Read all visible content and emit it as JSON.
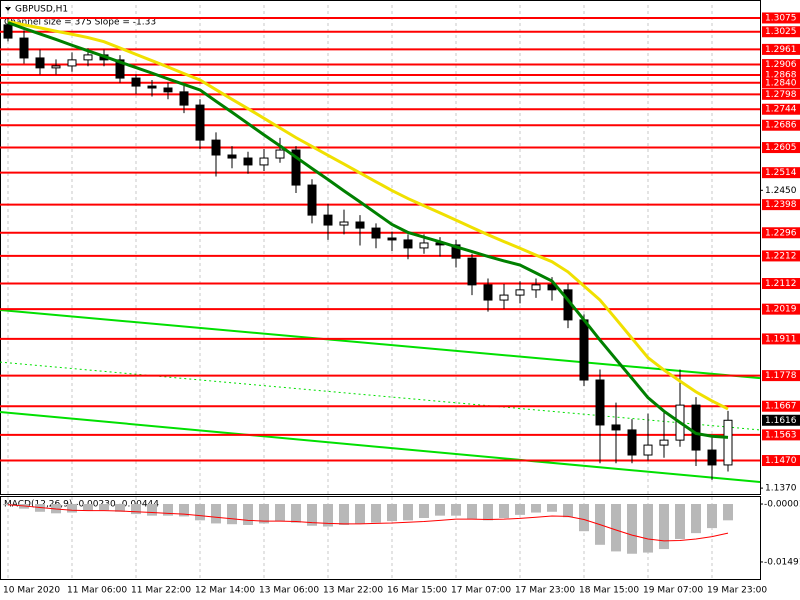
{
  "chart_data": {
    "type": "candlestick",
    "title": "GBPUSD,H1",
    "subtitle": "Channel size = 375 Slope = -1.33",
    "categories": [
      "10 Mar 2020",
      null,
      null,
      null,
      "11 Mar 06:00",
      null,
      null,
      null,
      "11 Mar 22:00",
      null,
      null,
      null,
      "12 Mar 14:00",
      null,
      null,
      null,
      "13 Mar 06:00",
      null,
      null,
      null,
      "13 Mar 22:00",
      null,
      null,
      null,
      "16 Mar 15:00",
      null,
      null,
      null,
      "17 Mar 07:00",
      null,
      null,
      null,
      "17 Mar 23:00",
      null,
      null,
      null,
      "18 Mar 15:00",
      null,
      null,
      null,
      "19 Mar 07:00",
      null,
      null,
      null,
      "19 Mar 23:00",
      null
    ],
    "open": [
      1.305,
      1.3002,
      1.293,
      1.2894,
      1.2901,
      1.2923,
      1.2941,
      1.2923,
      1.2857,
      1.2828,
      1.2821,
      1.2807,
      1.2759,
      1.2632,
      1.2578,
      1.2567,
      1.2542,
      1.2567,
      1.2596,
      1.2469,
      1.236,
      1.2324,
      1.2335,
      1.2313,
      1.2277,
      1.227,
      1.2241,
      1.2259,
      1.2252,
      1.2204,
      1.2107,
      1.2052,
      1.207,
      1.2089,
      1.2107,
      1.2089,
      1.198,
      1.1762,
      1.1599,
      1.1581,
      1.149,
      1.1526,
      1.1544,
      1.1671,
      1.1508,
      1.1454
    ],
    "high": [
      1.3075,
      1.303,
      1.296,
      1.2925,
      1.295,
      1.2965,
      1.296,
      1.294,
      1.287,
      1.285,
      1.284,
      1.283,
      1.278,
      1.266,
      1.261,
      1.259,
      1.26,
      1.264,
      1.261,
      1.249,
      1.24,
      1.238,
      1.236,
      1.233,
      1.23,
      1.229,
      1.229,
      1.228,
      1.227,
      1.222,
      1.213,
      1.211,
      1.212,
      1.213,
      1.2135,
      1.211,
      1.2,
      1.18,
      1.168,
      1.162,
      1.164,
      1.165,
      1.18,
      1.17,
      1.156,
      1.165
    ],
    "low": [
      1.299,
      1.291,
      1.287,
      1.287,
      1.288,
      1.29,
      1.29,
      1.284,
      1.28,
      1.279,
      1.278,
      1.273,
      1.26,
      1.25,
      1.253,
      1.251,
      1.252,
      1.255,
      1.244,
      1.233,
      1.227,
      1.229,
      1.225,
      1.224,
      1.223,
      1.22,
      1.222,
      1.221,
      1.217,
      1.207,
      1.201,
      1.202,
      1.204,
      1.206,
      1.205,
      1.195,
      1.174,
      1.146,
      1.146,
      1.146,
      1.147,
      1.148,
      1.152,
      1.145,
      1.14,
      1.143
    ],
    "close": [
      1.3002,
      1.293,
      1.2894,
      1.2901,
      1.2923,
      1.2941,
      1.2923,
      1.2857,
      1.2828,
      1.2821,
      1.2807,
      1.2759,
      1.2632,
      1.2578,
      1.2567,
      1.2542,
      1.2567,
      1.2596,
      1.2469,
      1.236,
      1.2324,
      1.2335,
      1.2313,
      1.2277,
      1.227,
      1.2241,
      1.2259,
      1.2252,
      1.2204,
      1.2107,
      1.2052,
      1.207,
      1.2089,
      1.2107,
      1.2089,
      1.198,
      1.1762,
      1.1599,
      1.1581,
      1.149,
      1.1526,
      1.1544,
      1.1671,
      1.1508,
      1.1454,
      1.1616
    ],
    "moving_averages": [
      {
        "color": "#f0e000",
        "values": [
          1.3062,
          1.305,
          1.3039,
          1.3027,
          1.3016,
          1.3004,
          1.2989,
          1.2966,
          1.2943,
          1.292,
          1.2897,
          1.2873,
          1.285,
          1.2815,
          1.278,
          1.2746,
          1.2711,
          1.2676,
          1.2641,
          1.2609,
          1.2577,
          1.2545,
          1.2513,
          1.2481,
          1.2449,
          1.242,
          1.2394,
          1.2368,
          1.2342,
          1.2315,
          1.2289,
          1.2264,
          1.224,
          1.2215,
          1.2191,
          1.2154,
          1.2103,
          1.2052,
          1.1983,
          1.1913,
          1.1843,
          1.1798,
          1.1758,
          1.1719,
          1.1686,
          1.1657
        ]
      },
      {
        "color": "#008000",
        "values": [
          1.3058,
          1.3037,
          1.3017,
          1.2997,
          1.2976,
          1.2956,
          1.2936,
          1.2915,
          1.2895,
          1.2875,
          1.2854,
          1.2834,
          1.2814,
          1.2773,
          1.2733,
          1.2692,
          1.2651,
          1.2611,
          1.257,
          1.2529,
          1.2489,
          1.2448,
          1.2408,
          1.2367,
          1.2326,
          1.2297,
          1.228,
          1.2263,
          1.2245,
          1.2228,
          1.221,
          1.2194,
          1.2179,
          1.215,
          1.2121,
          1.2052,
          1.198,
          1.1907,
          1.1837,
          1.1768,
          1.1698,
          1.1649,
          1.1608,
          1.1568,
          1.1558,
          1.1554
        ]
      }
    ],
    "trendlines": {
      "color": "#00e000",
      "lines": [
        {
          "start": 1.2016,
          "end": 1.1769
        },
        {
          "start": 1.1646,
          "end": 1.1392
        },
        {
          "start": 1.1827,
          "end": 1.1581
        }
      ]
    },
    "levels": {
      "color": "#ff0000",
      "values": [
        1.3075,
        1.3025,
        1.2961,
        1.2906,
        1.2868,
        {
          "value": 1.284,
          "label": "1.2840"
        },
        1.2798,
        1.2744,
        1.2686,
        1.2605,
        1.2514,
        1.2398,
        1.2296,
        1.2212,
        1.2112,
        1.2019,
        1.1911,
        1.1778,
        1.1667,
        1.1563,
        {
          "value": 1.147,
          "label": "1.1470"
        }
      ]
    },
    "ylim": [
      1.1345,
      1.3122
    ],
    "yticks": [
      {
        "value": 1.245,
        "label": "1.2450"
      },
      {
        "value": 1.137,
        "label": "1.1370"
      }
    ],
    "grid": true,
    "macd": {
      "title": "MACD(12,26,9) -0.00230 -0.00444",
      "ylim": [
        -0.0193,
        0.0018
      ],
      "yticks": [
        -1e-05,
        -0.01491
      ],
      "histogram": {
        "color": "#b8b8b8",
        "values": [
          -0.0003,
          -0.0012,
          -0.002,
          -0.0024,
          -0.0022,
          -0.0018,
          -0.0016,
          -0.002,
          -0.0026,
          -0.003,
          -0.003,
          -0.0032,
          -0.0042,
          -0.005,
          -0.0052,
          -0.0054,
          -0.005,
          -0.0044,
          -0.0048,
          -0.0056,
          -0.0058,
          -0.0054,
          -0.005,
          -0.0048,
          -0.0044,
          -0.0042,
          -0.0036,
          -0.003,
          -0.003,
          -0.0038,
          -0.0042,
          -0.0036,
          -0.0028,
          -0.0022,
          -0.002,
          -0.0034,
          -0.007,
          -0.0105,
          -0.0122,
          -0.0128,
          -0.0125,
          -0.0116,
          -0.009,
          -0.0075,
          -0.0062,
          -0.0042
        ]
      },
      "signal": {
        "color": "#ff0000",
        "values": [
          -0.0002,
          -0.0005,
          -0.0009,
          -0.0013,
          -0.0016,
          -0.0017,
          -0.0017,
          -0.0018,
          -0.002,
          -0.0022,
          -0.0024,
          -0.0026,
          -0.003,
          -0.0034,
          -0.0038,
          -0.0042,
          -0.0044,
          -0.0044,
          -0.0045,
          -0.0048,
          -0.005,
          -0.0051,
          -0.0051,
          -0.005,
          -0.0049,
          -0.0047,
          -0.0045,
          -0.0042,
          -0.0039,
          -0.0039,
          -0.004,
          -0.0039,
          -0.0037,
          -0.0034,
          -0.0031,
          -0.0032,
          -0.004,
          -0.0053,
          -0.0067,
          -0.008,
          -0.009,
          -0.0095,
          -0.0094,
          -0.009,
          -0.0084,
          -0.0075
        ]
      }
    }
  }
}
